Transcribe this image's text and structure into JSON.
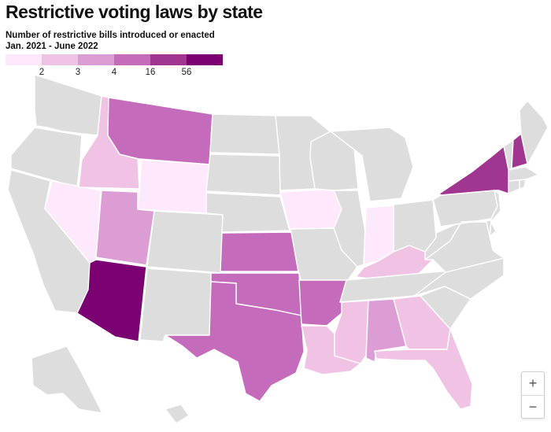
{
  "title": "Restrictive voting laws by state",
  "subtitle_line1": "Number of restrictive bills introduced or enacted",
  "subtitle_line2": "Jan. 2021 - June 2022",
  "legend": {
    "colors": [
      "#fde9fb",
      "#f0c2e4",
      "#dc9dd5",
      "#c56bbc",
      "#a0368f",
      "#7b0071"
    ],
    "ticks": [
      "2",
      "3",
      "4",
      "16",
      "56"
    ]
  },
  "colors": {
    "nodata": "#dddddd",
    "border": "#ffffff"
  },
  "zoom": {
    "in_label": "+",
    "out_label": "−"
  },
  "map_data": {
    "regions": [
      {
        "id": "WA",
        "bin": null
      },
      {
        "id": "OR",
        "bin": null
      },
      {
        "id": "CA",
        "bin": null
      },
      {
        "id": "NV",
        "bin": 0
      },
      {
        "id": "ID",
        "bin": 1
      },
      {
        "id": "MT",
        "bin": 3
      },
      {
        "id": "WY",
        "bin": 0
      },
      {
        "id": "UT",
        "bin": 2
      },
      {
        "id": "AZ",
        "bin": 5
      },
      {
        "id": "CO",
        "bin": null
      },
      {
        "id": "NM",
        "bin": null
      },
      {
        "id": "ND",
        "bin": null
      },
      {
        "id": "SD",
        "bin": null
      },
      {
        "id": "NE",
        "bin": null
      },
      {
        "id": "KS",
        "bin": 3
      },
      {
        "id": "OK",
        "bin": 3
      },
      {
        "id": "TX",
        "bin": 3
      },
      {
        "id": "MN",
        "bin": null
      },
      {
        "id": "IA",
        "bin": 0
      },
      {
        "id": "MO",
        "bin": null
      },
      {
        "id": "AR",
        "bin": 3
      },
      {
        "id": "LA",
        "bin": 1
      },
      {
        "id": "WI",
        "bin": null
      },
      {
        "id": "IL",
        "bin": null
      },
      {
        "id": "MI",
        "bin": null
      },
      {
        "id": "IN",
        "bin": 0
      },
      {
        "id": "OH",
        "bin": null
      },
      {
        "id": "KY",
        "bin": 1
      },
      {
        "id": "TN",
        "bin": null
      },
      {
        "id": "MS",
        "bin": 1
      },
      {
        "id": "AL",
        "bin": 2
      },
      {
        "id": "GA",
        "bin": 1
      },
      {
        "id": "FL",
        "bin": 1
      },
      {
        "id": "SC",
        "bin": null
      },
      {
        "id": "NC",
        "bin": null
      },
      {
        "id": "VA",
        "bin": null
      },
      {
        "id": "WV",
        "bin": null
      },
      {
        "id": "PA",
        "bin": null
      },
      {
        "id": "NY",
        "bin": 4
      },
      {
        "id": "NJ",
        "bin": null
      },
      {
        "id": "DE",
        "bin": null
      },
      {
        "id": "MD",
        "bin": null
      },
      {
        "id": "CT",
        "bin": null
      },
      {
        "id": "RI",
        "bin": null
      },
      {
        "id": "MA",
        "bin": null
      },
      {
        "id": "VT",
        "bin": null
      },
      {
        "id": "NH",
        "bin": 4
      },
      {
        "id": "ME",
        "bin": null
      },
      {
        "id": "AK",
        "bin": null
      },
      {
        "id": "HI",
        "bin": null
      }
    ]
  }
}
